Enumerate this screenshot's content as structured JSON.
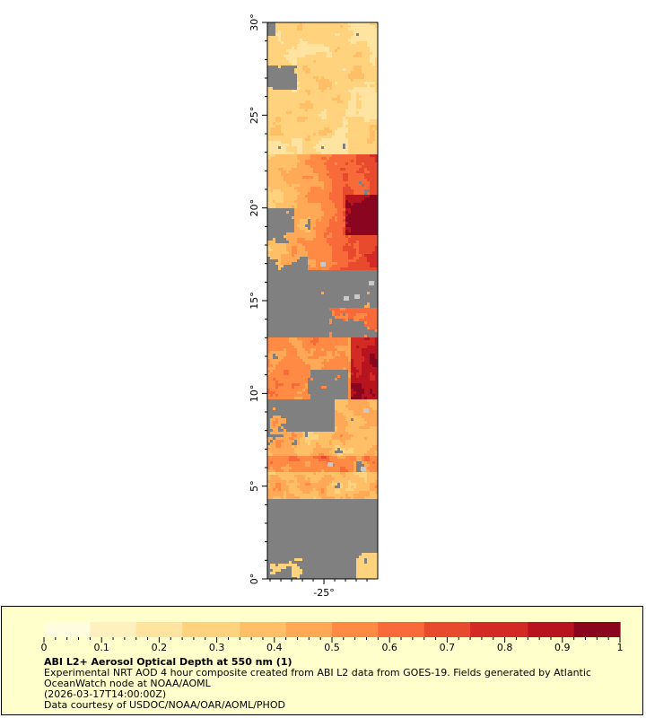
{
  "map": {
    "lat_axis": {
      "min": 0,
      "max": 30,
      "ticks": [
        {
          "value": 0,
          "label": "0°"
        },
        {
          "value": 5,
          "label": "5°"
        },
        {
          "value": 10,
          "label": "10°"
        },
        {
          "value": 15,
          "label": "15°"
        },
        {
          "value": 20,
          "label": "20°"
        },
        {
          "value": 25,
          "label": "25°"
        },
        {
          "value": 30,
          "label": "30°"
        }
      ]
    },
    "lon_axis": {
      "ticks": [
        {
          "value": -25,
          "label": "-25°"
        }
      ]
    },
    "no_data_color": "#808080",
    "cloud_color": "#c8c8c8"
  },
  "colorbar": {
    "min": 0,
    "max": 1,
    "ticks": [
      {
        "value": 0,
        "label": "0"
      },
      {
        "value": 0.1,
        "label": "0.1"
      },
      {
        "value": 0.2,
        "label": "0.2"
      },
      {
        "value": 0.3,
        "label": "0.3"
      },
      {
        "value": 0.4,
        "label": "0.4"
      },
      {
        "value": 0.5,
        "label": "0.5"
      },
      {
        "value": 0.6,
        "label": "0.6"
      },
      {
        "value": 0.7,
        "label": "0.7"
      },
      {
        "value": 0.8,
        "label": "0.8"
      },
      {
        "value": 0.9,
        "label": "0.9"
      },
      {
        "value": 1,
        "label": "1"
      }
    ],
    "colors": [
      "#fffde0",
      "#fff0c0",
      "#ffe3a0",
      "#ffd27d",
      "#ffbf66",
      "#ffa855",
      "#ff8a44",
      "#f86a3a",
      "#e84a2e",
      "#d42a26",
      "#b8141f",
      "#8a0520"
    ]
  },
  "caption": {
    "title": "ABI L2+ Aerosol Optical Depth at 550 nm (1)",
    "line1": "Experimental NRT AOD 4 hour composite created from ABI L2 data from GOES-19. Fields generated by Atlantic OceanWatch node at NOAA/AOML",
    "line2": "(2026-03-17T14:00:00Z)",
    "line3": "Data courtesy of USDOC/NOAA/OAR/AOML/PHOD"
  }
}
